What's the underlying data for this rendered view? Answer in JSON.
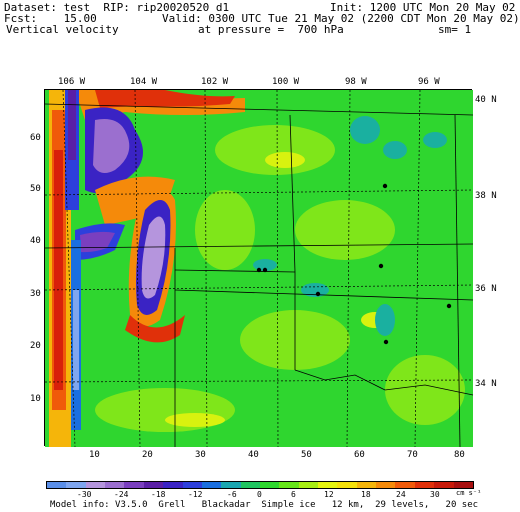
{
  "header": {
    "line1_left": "Dataset: test  RIP: rip20020520 d1",
    "line1_right": "Init: 1200 UTC Mon 20 May 02",
    "line2_left": "Fcst:    15.00",
    "line2_right": "Valid: 0300 UTC Tue 21 May 02 (2200 CDT Mon 20 May 02)",
    "line3_left": "Vertical velocity",
    "line3_mid": "at pressure =  700 hPa",
    "line3_right": "sm= 1"
  },
  "longitude_labels": [
    "106 W",
    "104 W",
    "102 W",
    "100 W",
    "98 W",
    "96 W"
  ],
  "latitude_labels": [
    "40 N",
    "38 N",
    "36 N",
    "34 N"
  ],
  "x_ticks": [
    "10",
    "20",
    "30",
    "40",
    "50",
    "60",
    "70",
    "80"
  ],
  "y_ticks": [
    "60",
    "50",
    "40",
    "30",
    "20",
    "10"
  ],
  "colorbar": {
    "labels": [
      "-30",
      "-24",
      "-18",
      "-12",
      "-6",
      "0",
      "6",
      "12",
      "18",
      "24",
      "30"
    ],
    "units": "cm s⁻¹",
    "colors": [
      "#5b8fe8",
      "#7fa6ef",
      "#b595dd",
      "#9b6fcf",
      "#7a3fbf",
      "#5a1fa6",
      "#3a23c4",
      "#2d3fdc",
      "#1a6fe0",
      "#1aa6b0",
      "#1fc460",
      "#2ed82e",
      "#66e61a",
      "#a8ee14",
      "#e6f50f",
      "#f5e10a",
      "#f5b50a",
      "#f58a0a",
      "#f05a0a",
      "#e0300a",
      "#c81a0a",
      "#a80f0f"
    ]
  },
  "footer": "Model info: V3.5.0  Grell   Blackadar  Simple ice   12 km,  29 levels,   20 sec"
}
